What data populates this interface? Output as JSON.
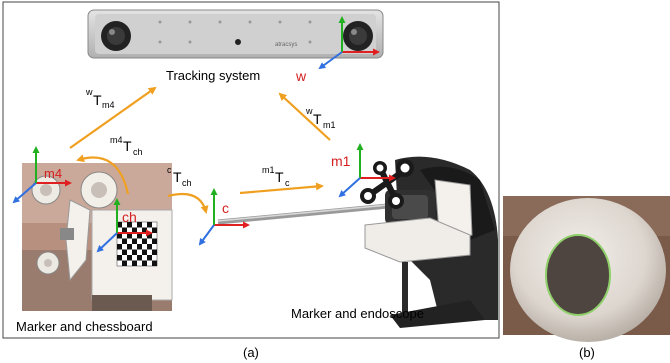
{
  "panel_a": {
    "caption": "(a)",
    "device_brand": "atracsys",
    "labels": {
      "tracking_system": "Tracking system",
      "marker_chessboard": "Marker and chessboard",
      "marker_endoscope": "Marker and endoscope"
    },
    "frames": {
      "world": "w",
      "endoscope_marker": "m1",
      "camera": "c",
      "chessboard": "ch",
      "chessboard_marker": "m4"
    },
    "transforms": {
      "w_m4": {
        "pre": "w",
        "main": "T",
        "sub": "m4"
      },
      "m4_ch": {
        "pre": "m4",
        "main": "T",
        "sub": "ch"
      },
      "c_ch": {
        "pre": "c",
        "main": "T",
        "sub": "ch"
      },
      "m1_c": {
        "pre": "m1",
        "main": "T",
        "sub": "c"
      },
      "w_m1": {
        "pre": "w",
        "main": "T",
        "sub": "m1"
      }
    }
  },
  "panel_b": {
    "caption": "(b)"
  },
  "colors": {
    "frame_label_red": "#d42020",
    "arrow_orange": "#f0a020",
    "axis_x_red": "#e02020",
    "axis_y_green": "#20b020",
    "axis_z_blue": "#3070e0",
    "tracker_body": "#c8c8c8",
    "panel_b_bg": "#7a5a48",
    "panel_b_ring": "#8fd06a"
  }
}
